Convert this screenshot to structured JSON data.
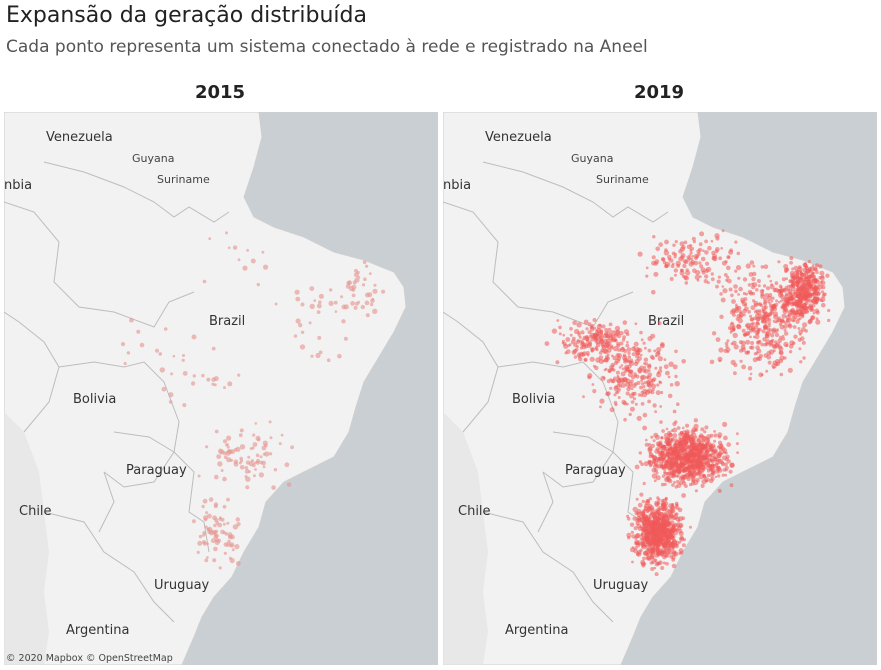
{
  "header": {
    "title": "Expansão da geração distribuída",
    "subtitle": "Cada ponto representa um sistema conectado à rede e registrado na Aneel"
  },
  "maps": [
    {
      "year": "2015",
      "density_level": "low"
    },
    {
      "year": "2019",
      "density_level": "high"
    }
  ],
  "map_labels": {
    "venezuela": "Venezuela",
    "guyana": "Guyana",
    "suriname": "Suriname",
    "colombia_partial": "nbia",
    "brazil": "Brazil",
    "bolivia": "Bolivia",
    "paraguay": "Paraguay",
    "chile": "Chile",
    "uruguay": "Uruguay",
    "argentina": "Argentina"
  },
  "attribution": "© 2020 Mapbox © OpenStreetMap",
  "colors": {
    "ocean": "#c9cfd2",
    "land": "#f1f1f1",
    "land_neighbors": "#ededed",
    "border": "#bcbcbc",
    "dot_2015": "#e59a95",
    "dot_2019": "#f05a5a"
  }
}
